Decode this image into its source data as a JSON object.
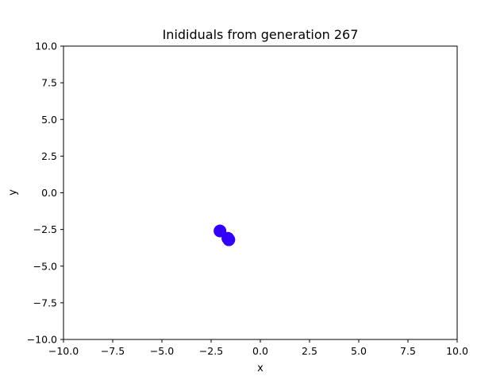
{
  "chart_data": {
    "type": "scatter",
    "title": "Inididuals from generation 267",
    "xlabel": "x",
    "ylabel": "y",
    "xlim": [
      -10,
      10
    ],
    "ylim": [
      -10,
      10
    ],
    "xticks": [
      -10,
      -7.5,
      -5,
      -2.5,
      0,
      2.5,
      5,
      7.5,
      10
    ],
    "yticks": [
      -10,
      -7.5,
      -5,
      -2.5,
      0,
      2.5,
      5,
      7.5,
      10
    ],
    "xtick_labels": [
      "−10.0",
      "−7.5",
      "−5.0",
      "−2.5",
      "0.0",
      "2.5",
      "5.0",
      "7.5",
      "10.0"
    ],
    "ytick_labels": [
      "−10.0",
      "−7.5",
      "−5.0",
      "−2.5",
      "0.0",
      "2.5",
      "5.0",
      "7.5",
      "10.0"
    ],
    "grid": false,
    "marker_color": "#3300ff",
    "points": [
      {
        "x": -2.05,
        "y": -2.6
      },
      {
        "x": -1.65,
        "y": -3.1
      },
      {
        "x": -1.6,
        "y": -3.2
      }
    ]
  }
}
